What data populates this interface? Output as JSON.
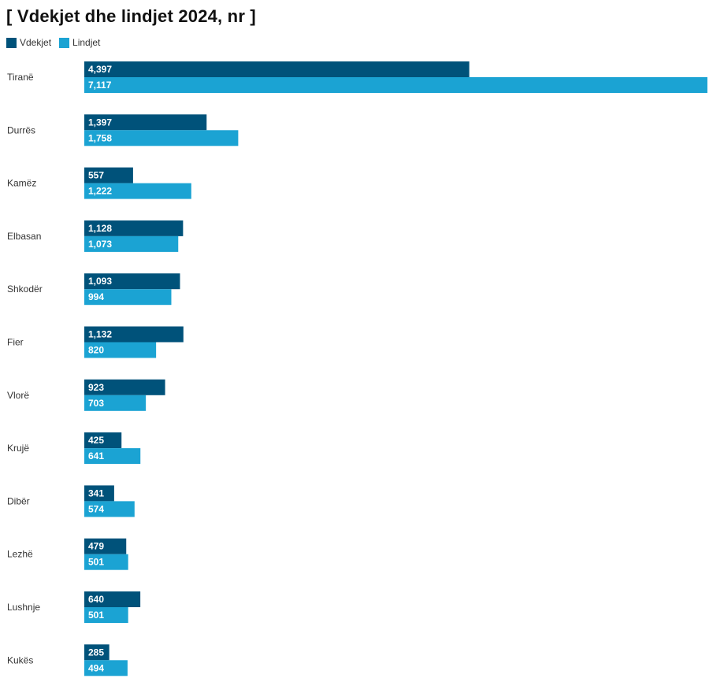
{
  "chart_data": {
    "type": "bar",
    "orientation": "horizontal",
    "title": "[ Vdekjet dhe lindjet 2024, nr ]",
    "categories": [
      "Tiranë",
      "Durrës",
      "Kamëz",
      "Elbasan",
      "Shkodër",
      "Fier",
      "Vlorë",
      "Krujë",
      "Dibër",
      "Lezhë",
      "Lushnje",
      "Kukës"
    ],
    "series": [
      {
        "name": "Vdekjet",
        "color": "#00527a",
        "values": [
          4397,
          1397,
          557,
          1128,
          1093,
          1132,
          923,
          425,
          341,
          479,
          640,
          285
        ],
        "labels": [
          "4,397",
          "1,397",
          "557",
          "1,128",
          "1,093",
          "1,132",
          "923",
          "425",
          "341",
          "479",
          "640",
          "285"
        ]
      },
      {
        "name": "Lindjet",
        "color": "#1ba3d3",
        "values": [
          7117,
          1758,
          1222,
          1073,
          994,
          820,
          703,
          641,
          574,
          501,
          501,
          494
        ],
        "labels": [
          "7,117",
          "1,758",
          "1,222",
          "1,073",
          "994",
          "820",
          "703",
          "641",
          "574",
          "501",
          "501",
          "494"
        ]
      }
    ],
    "xlim": [
      0,
      7117
    ],
    "legend_position": "top-left",
    "grid": false
  }
}
